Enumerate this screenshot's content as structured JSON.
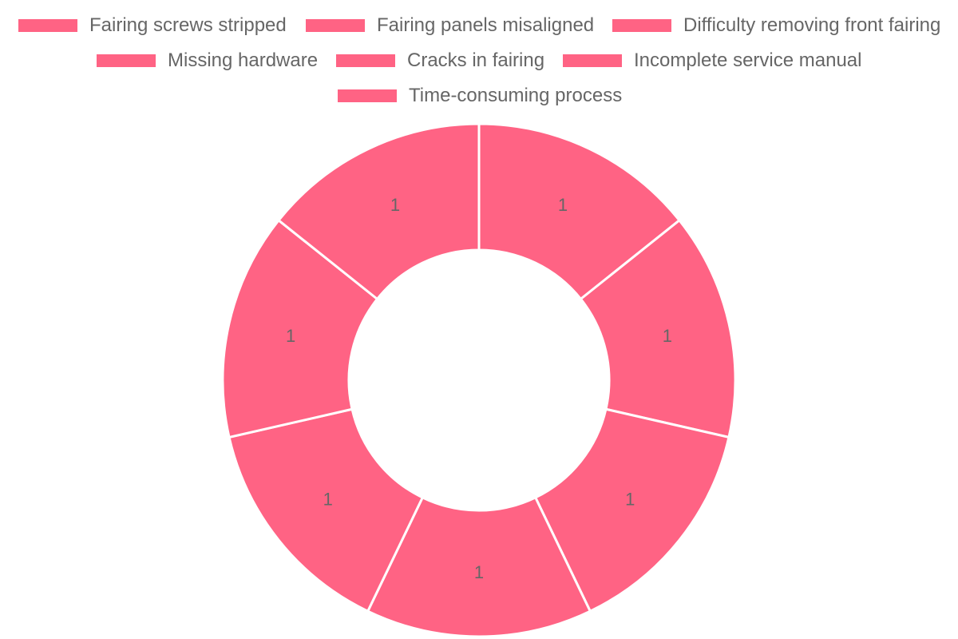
{
  "chart_data": {
    "type": "pie",
    "variant": "doughnut",
    "title": "",
    "legend_position": "top",
    "categories": [
      "Fairing screws stripped",
      "Fairing panels misaligned",
      "Difficulty removing front fairing",
      "Missing hardware",
      "Cracks in fairing",
      "Incomplete service manual",
      "Time-consuming process"
    ],
    "values": [
      1,
      1,
      1,
      1,
      1,
      1,
      1
    ],
    "data_labels": [
      "1",
      "1",
      "1",
      "1",
      "1",
      "1",
      "1"
    ],
    "colors": {
      "slice": "#ff6384",
      "slice_border": "#ffffff",
      "label_text": "#666666"
    }
  }
}
